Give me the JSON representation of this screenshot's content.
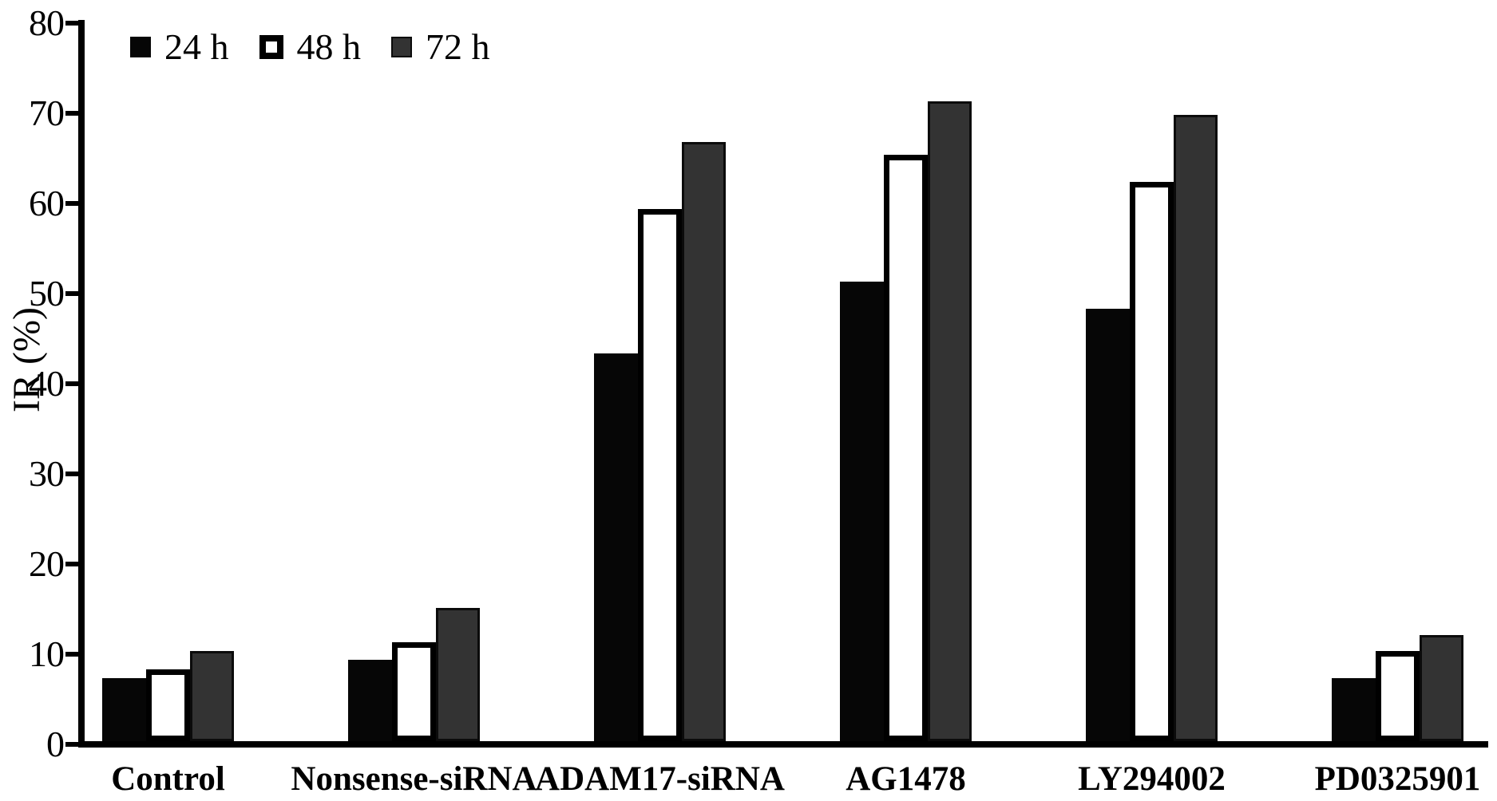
{
  "chart_data": {
    "type": "bar",
    "title": "",
    "ylabel": "IR (%)",
    "xlabel": "",
    "ylim": [
      0,
      80
    ],
    "yticks": [
      0,
      10,
      20,
      30,
      40,
      50,
      60,
      70,
      80
    ],
    "grid": false,
    "legend_position": "top-left",
    "categories": [
      "Control",
      "Nonsense-siRNA",
      "ADAM17-siRNA",
      "AG1478",
      "LY294002",
      "PD0325901"
    ],
    "series": [
      {
        "name": "24 h",
        "style": "black",
        "color": "#060606",
        "values": [
          7,
          9,
          43,
          51,
          48,
          7
        ]
      },
      {
        "name": "48 h",
        "style": "white",
        "color": "#ffffff",
        "outline": "#000000",
        "values": [
          8,
          11,
          59,
          65,
          62,
          10
        ]
      },
      {
        "name": "72 h",
        "style": "gray",
        "color": "#333333",
        "outline": "#0b0b0b",
        "values": [
          10,
          14.8,
          66.5,
          71,
          69.5,
          11.8
        ]
      }
    ],
    "axis_color": "#000000"
  }
}
